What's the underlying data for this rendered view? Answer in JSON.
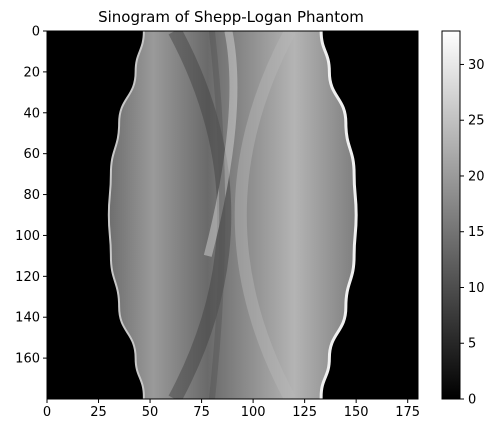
{
  "chart_data": {
    "type": "heatmap",
    "title": "Sinogram of Shepp-Logan Phantom",
    "xlabel": "",
    "ylabel": "",
    "colormap": "gray",
    "xlim": [
      0,
      180
    ],
    "ylim": [
      180,
      0
    ],
    "y_axis_inverted": true,
    "x_ticks": [
      0,
      25,
      50,
      75,
      100,
      125,
      150,
      175
    ],
    "y_ticks": [
      0,
      20,
      40,
      60,
      80,
      100,
      120,
      140,
      160
    ],
    "colorbar": {
      "vmin": 0,
      "vmax": 33,
      "ticks": [
        0,
        5,
        10,
        15,
        20,
        25,
        30
      ]
    },
    "background_value": 0,
    "support_boundary": {
      "projection_angle": [
        0,
        20,
        45,
        70,
        90,
        110,
        135,
        160,
        179
      ],
      "left_edge_x": [
        47,
        43,
        35,
        31,
        30,
        31,
        35,
        43,
        47
      ],
      "right_edge_x": [
        133,
        137,
        145,
        149,
        150,
        149,
        145,
        137,
        133
      ]
    }
  }
}
